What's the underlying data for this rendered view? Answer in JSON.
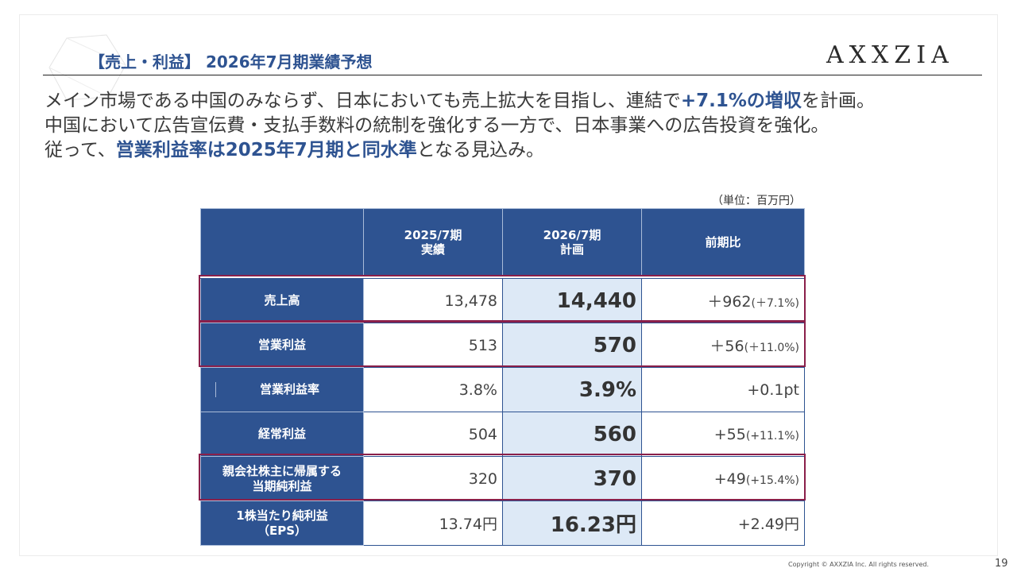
{
  "header": {
    "section_title": "【売上・利益】 2026年7月期業績予想",
    "logo_text": "AXXZIA"
  },
  "lead": {
    "line1_a": "メイン市場である中国のみならず、日本においても売上拡大を目指し、連結で",
    "line1_b": "+7.1%の増収",
    "line1_c": "を計画。",
    "line2": "中国において広告宣伝費・支払手数料の統制を強化する一方で、日本事業への広告投資を強化。",
    "line3_a": "従って、",
    "line3_b": "営業利益率は2025年7月期と同水準",
    "line3_c": "となる見込み。"
  },
  "unit_label": "（単位：百万円）",
  "table": {
    "headers": {
      "col1": "",
      "col2_line1": "2025/7期",
      "col2_line2": "実績",
      "col3_line1": "2026/7期",
      "col3_line2": "計画",
      "col4": "前期比"
    },
    "rows": [
      {
        "label": "売上高",
        "label2": "",
        "v2025": "13,478",
        "v2026": "14,440",
        "diff": "＋962",
        "diff_pct": "(＋7.1%)"
      },
      {
        "label": "営業利益",
        "label2": "",
        "v2025": "513",
        "v2026": "570",
        "diff": "＋56",
        "diff_pct": "(＋11.0%)"
      },
      {
        "label": "営業利益率",
        "label2": "",
        "v2025": "3.8%",
        "v2026": "3.9%",
        "diff": "+0.1pt",
        "diff_pct": ""
      },
      {
        "label": "経常利益",
        "label2": "",
        "v2025": "504",
        "v2026": "560",
        "diff": "+55",
        "diff_pct": "(+11.1%)"
      },
      {
        "label": "親会社株主に帰属する",
        "label2": "当期純利益",
        "v2025": "320",
        "v2026": "370",
        "diff": "+49",
        "diff_pct": "(+15.4%)"
      },
      {
        "label": "1株当たり純利益",
        "label2": "（EPS）",
        "v2025": "13.74円",
        "v2026": "16.23円",
        "diff": "+2.49円",
        "diff_pct": ""
      }
    ]
  },
  "colors": {
    "navy": "#2e5391",
    "highlight_border": "#8a1f4a",
    "plan_column_bg": "#dde9f6"
  },
  "footer": {
    "copyright": "Copyright © AXXZIA Inc. All rights reserved.",
    "page_number": "19"
  }
}
